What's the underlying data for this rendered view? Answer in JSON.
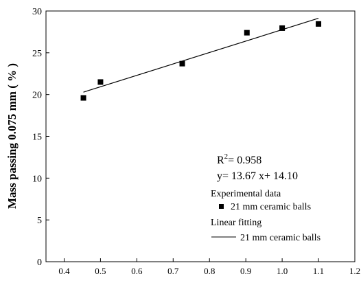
{
  "chart_data": {
    "type": "scatter",
    "title": "",
    "xlabel": "",
    "ylabel": "Mass passing 0.075 mm ( % )",
    "xlim": [
      0.35,
      1.2
    ],
    "ylim": [
      0,
      30
    ],
    "x_ticks": [
      "0.4",
      "0.5",
      "0.6",
      "0.7",
      "0.8",
      "0.9",
      "1.0",
      "1.1",
      "1.2"
    ],
    "y_ticks": [
      "0",
      "5",
      "10",
      "15",
      "20",
      "25",
      "30"
    ],
    "grid": false,
    "series": [
      {
        "name": "21 mm ceramic balls",
        "kind": "points",
        "marker": "square",
        "x": [
          0.453,
          0.5,
          0.725,
          0.903,
          1.0,
          1.1
        ],
        "y": [
          19.6,
          21.5,
          23.7,
          27.4,
          27.95,
          28.45
        ]
      },
      {
        "name": "21 mm ceramic balls",
        "kind": "fit-line",
        "x": [
          0.453,
          1.1
        ],
        "y": [
          20.29,
          29.13
        ]
      }
    ],
    "annotations": {
      "r2_base": "R",
      "r2_sup": "2",
      "r2_value": "= 0.958",
      "equation": "y= 13.67 x+ 14.10"
    },
    "legend": {
      "placement": "bottom-right",
      "group1_title": "Experimental data",
      "group1_entry": "21 mm ceramic balls",
      "group2_title": "Linear fitting",
      "group2_entry": "21 mm ceramic balls"
    }
  }
}
